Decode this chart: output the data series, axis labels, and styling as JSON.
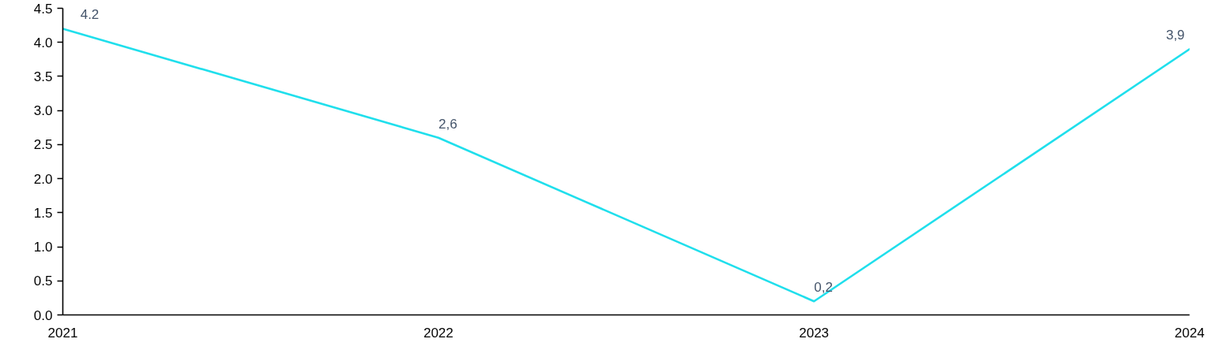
{
  "chart_data": {
    "type": "line",
    "categories": [
      "2021",
      "2022",
      "2023",
      "2024"
    ],
    "series": [
      {
        "color": "#20dfec",
        "values": [
          4.2,
          2.6,
          0.2,
          3.9
        ],
        "value_labels": [
          "4.2",
          "2,6",
          "0,2",
          "3,9"
        ]
      }
    ],
    "ylim": [
      0,
      4.5
    ],
    "yticks": [
      {
        "value": 0,
        "label": "0.0"
      },
      0.5,
      {
        "value": 1,
        "label": "1.0"
      },
      1.5,
      {
        "value": 2,
        "label": "2.0"
      },
      2.5,
      {
        "value": 3,
        "label": "3.0"
      },
      3.5,
      {
        "value": 4,
        "label": "4.0"
      },
      4.5
    ]
  }
}
